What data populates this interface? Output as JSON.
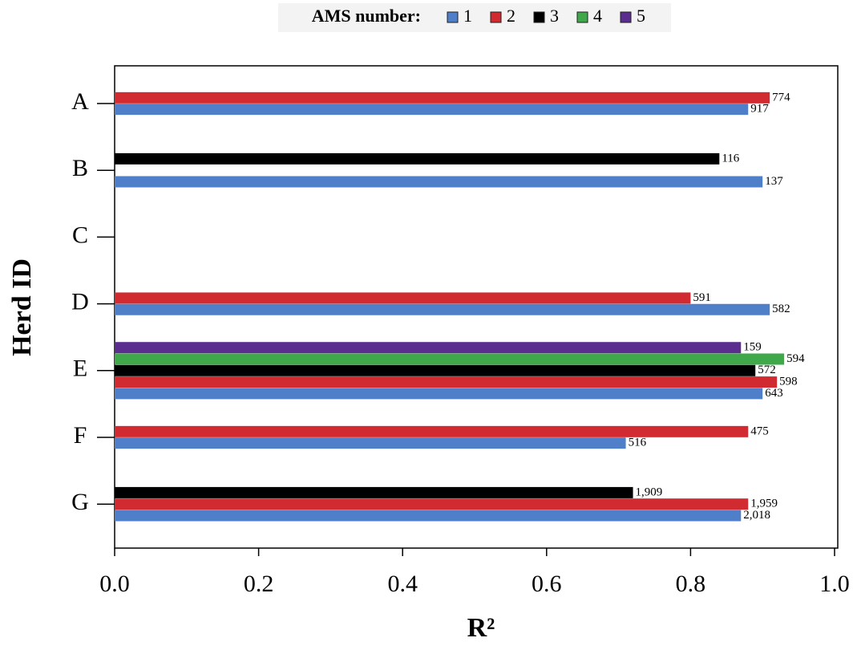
{
  "chart_data": {
    "type": "hbar",
    "legend_title": "AMS number:",
    "legend_position": "top",
    "x_label": "R²",
    "y_label": "Herd ID",
    "categories": [
      "A",
      "B",
      "C",
      "D",
      "E",
      "F",
      "G"
    ],
    "xlim": [
      0,
      1.0
    ],
    "xticks": [
      {
        "value": 0,
        "label": "0.0"
      },
      0.2,
      0.4,
      0.6,
      0.8,
      {
        "value": 1.0,
        "label": "1.0"
      }
    ],
    "series": [
      {
        "name": "1",
        "color": "#4f7fc8",
        "values": [
          0.88,
          0.9,
          null,
          0.91,
          0.9,
          0.71,
          0.87
        ],
        "n_labels": [
          "917",
          "137",
          null,
          "582",
          "643",
          "516",
          "2,018"
        ]
      },
      {
        "name": "2",
        "color": "#d12a30",
        "values": [
          0.91,
          null,
          null,
          0.8,
          0.92,
          0.88,
          0.88
        ],
        "n_labels": [
          "774",
          null,
          null,
          "591",
          "598",
          "475",
          "1,959"
        ]
      },
      {
        "name": "3",
        "color": "#000000",
        "values": [
          null,
          0.84,
          null,
          null,
          0.89,
          null,
          0.72
        ],
        "n_labels": [
          null,
          "116",
          null,
          null,
          "572",
          null,
          "1,909"
        ]
      },
      {
        "name": "4",
        "color": "#3ea84a",
        "values": [
          null,
          null,
          null,
          null,
          0.93,
          null,
          null
        ],
        "n_labels": [
          null,
          null,
          null,
          null,
          "594",
          null,
          null
        ]
      },
      {
        "name": "5",
        "color": "#5a2d8e",
        "values": [
          null,
          null,
          null,
          null,
          0.87,
          null,
          null
        ],
        "n_labels": [
          null,
          null,
          null,
          null,
          "159",
          null,
          null
        ]
      }
    ]
  }
}
